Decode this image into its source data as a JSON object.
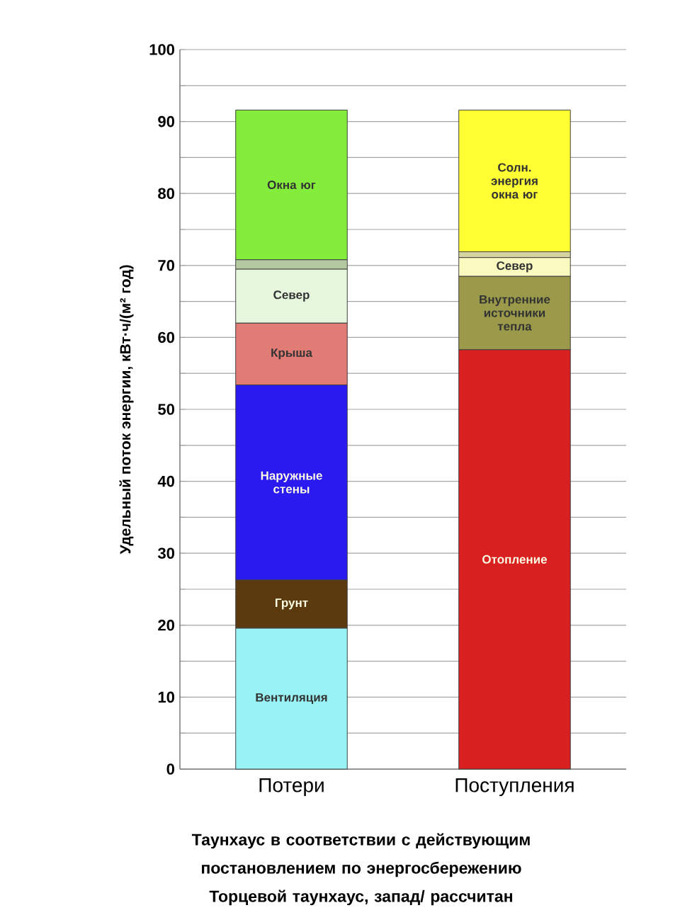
{
  "chart_data": {
    "type": "bar",
    "stacked": true,
    "categories": [
      "Потери",
      "Поступления"
    ],
    "ylabel": "Удельный поток энергии, кВт·ч/(м² год)",
    "ylim": [
      0,
      100
    ],
    "yticks": [
      0,
      {
        "value": 5,
        "label": null
      },
      10,
      {
        "value": 15,
        "label": null
      },
      20,
      {
        "value": 25,
        "label": null
      },
      30,
      {
        "value": 35,
        "label": null
      },
      40,
      {
        "value": 45,
        "label": null
      },
      50,
      {
        "value": 55,
        "label": null
      },
      60,
      {
        "value": 65,
        "label": null
      },
      70,
      {
        "value": 75,
        "label": null
      },
      80,
      {
        "value": 85,
        "label": null
      },
      90,
      {
        "value": 95,
        "label": null
      },
      100
    ],
    "grid": "y",
    "series": [
      {
        "name": "Вентиляция",
        "color": "#99f3f5",
        "values": [
          19.6,
          null
        ]
      },
      {
        "name": "Грунт",
        "color": "#5c3a10",
        "values": [
          6.7,
          null
        ]
      },
      {
        "name": "Наружные стены",
        "color": "#2a1af0",
        "values": [
          27.1,
          null
        ]
      },
      {
        "name": "Крыша",
        "color": "#e07b76",
        "values": [
          8.6,
          null
        ]
      },
      {
        "name": "Север",
        "color": "#e6f7dd",
        "values": [
          7.5,
          null
        ]
      },
      {
        "color": "#b5c9a0",
        "values": [
          1.3,
          null
        ]
      },
      {
        "name": "Окна юг",
        "color": "#84ec3a",
        "values": [
          20.8,
          null
        ]
      },
      {
        "name": "Отопление",
        "color": "#d92020",
        "values": [
          null,
          58.3
        ]
      },
      {
        "name": "Внутренние источники тепла",
        "color": "#9a9a4a",
        "values": [
          null,
          10.2
        ]
      },
      {
        "name": "Север",
        "color": "#fafac0",
        "values": [
          null,
          2.6
        ]
      },
      {
        "color": "#d4d4a0",
        "values": [
          null,
          0.8
        ]
      },
      {
        "name": "Солн. энергия окна юг",
        "color": "#ffff33",
        "values": [
          null,
          19.7
        ]
      }
    ],
    "annotations": [
      "Таунхаус в соответствии с действующим постановлением по энергосбережению",
      "Торцевой таунхаус, запад/ рассчитан"
    ]
  }
}
